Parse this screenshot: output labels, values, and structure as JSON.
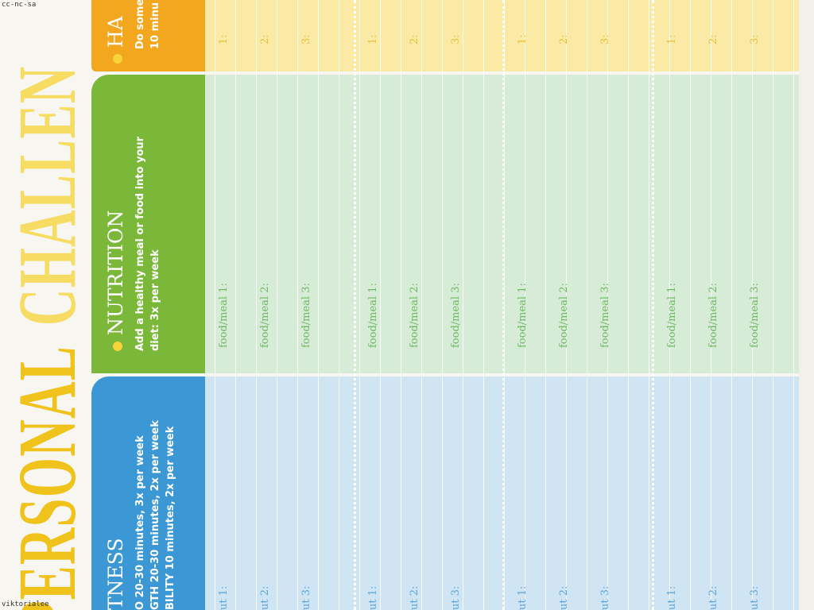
{
  "watermarks": {
    "top": "cc-nc-sa",
    "bottom": "viktorialee"
  },
  "title": {
    "part1": "PERSONAL",
    "part2": "CHALLEN"
  },
  "sections": {
    "fitness": {
      "heading": "TNESS",
      "lines": [
        "O 20-30 minutes, 3x per week",
        "GTH 20-30 minutes, 2x per week",
        "BILITY 10 minutes, 2x per week"
      ],
      "entry_labels": [
        "ut 1:",
        "ut 2:",
        "ut 3:"
      ]
    },
    "nutrition": {
      "heading": "NUTRITION",
      "lines": [
        "Add a healthy meal or food into your",
        "diet: 3x per week"
      ],
      "entry_labels": [
        "food/meal 1:",
        "food/meal 2:",
        "food/meal 3:"
      ]
    },
    "habit": {
      "heading": "HA",
      "lines": [
        "Do some",
        "10 minu"
      ],
      "entry_labels": [
        "1:",
        "2:",
        "3:"
      ]
    }
  }
}
